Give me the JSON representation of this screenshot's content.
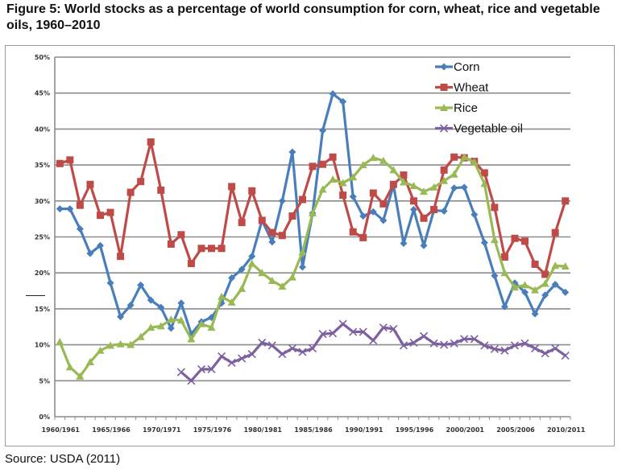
{
  "figure": {
    "title": "Figure 5: World stocks as a percentage of world consumption for corn, wheat, rice and vegetable oils, 1960–2010",
    "source": "Source: USDA (2011)"
  },
  "chart_data": {
    "type": "line",
    "title": "Figure 5: World stocks as a percentage of world consumption for corn, wheat, rice and vegetable oils, 1960–2010",
    "xlabel": "",
    "ylabel": "",
    "ylim": [
      0,
      50
    ],
    "y_ticks": [
      "0%",
      "5%",
      "10%",
      "15%",
      "20%",
      "25%",
      "30%",
      "35%",
      "40%",
      "45%",
      "50%"
    ],
    "x_ticks": [
      "1960/1961",
      "1965/1966",
      "1970/1971",
      "1975/1976",
      "1980/1981",
      "1985/1986",
      "1990/1991",
      "1995/1996",
      "2000/2001",
      "2005/2006",
      "2010/2011"
    ],
    "x_start_year": 1960,
    "x_end_year": 2010,
    "grid": true,
    "legend_position": "top-right",
    "series": [
      {
        "name": "Corn",
        "color": "#4a7ebb",
        "marker": "diamond",
        "start_year": 1960,
        "values": [
          28.9,
          28.9,
          26.1,
          22.7,
          23.8,
          18.6,
          13.9,
          15.5,
          18.3,
          16.2,
          15.2,
          12.3,
          15.8,
          11.5,
          13.2,
          13.8,
          15.8,
          19.3,
          20.5,
          22.3,
          27.3,
          24.3,
          30.0,
          36.8,
          20.8,
          28.3,
          39.8,
          44.9,
          43.8,
          30.6,
          27.9,
          28.5,
          27.3,
          32.2,
          24.1,
          28.8,
          23.8,
          28.7,
          28.6,
          31.8,
          31.9,
          28.1,
          24.2,
          19.6,
          15.3,
          18.6,
          17.3,
          14.3,
          16.9,
          18.4,
          17.3
        ]
      },
      {
        "name": "Wheat",
        "color": "#be4b48",
        "marker": "square",
        "start_year": 1960,
        "values": [
          35.2,
          35.7,
          29.4,
          32.3,
          28.0,
          28.4,
          22.3,
          31.2,
          32.7,
          38.2,
          31.5,
          24.0,
          25.3,
          21.3,
          23.4,
          23.4,
          23.4,
          32.0,
          27.0,
          31.4,
          27.3,
          25.6,
          25.2,
          27.9,
          30.2,
          34.8,
          35.1,
          36.1,
          30.8,
          25.7,
          24.9,
          31.1,
          29.6,
          32.3,
          33.6,
          30.0,
          27.6,
          28.8,
          34.3,
          36.1,
          36.0,
          35.5,
          33.9,
          29.1,
          22.2,
          24.8,
          24.4,
          21.2,
          19.8,
          25.6,
          30.0
        ]
      },
      {
        "name": "Rice",
        "color": "#98b954",
        "marker": "triangle",
        "start_year": 1960,
        "values": [
          10.4,
          6.9,
          5.6,
          7.6,
          9.2,
          9.9,
          10.1,
          10.0,
          11.1,
          12.4,
          12.6,
          13.5,
          13.4,
          10.8,
          12.9,
          12.4,
          16.7,
          15.9,
          17.8,
          21.3,
          20.0,
          18.9,
          18.1,
          19.4,
          22.9,
          28.3,
          31.6,
          33.0,
          32.5,
          33.3,
          35.0,
          36.0,
          35.6,
          34.3,
          32.6,
          32.1,
          31.3,
          31.9,
          32.8,
          33.7,
          36.1,
          35.4,
          32.4,
          24.6,
          20.0,
          18.0,
          18.3,
          17.6,
          18.5,
          21.0,
          20.9
        ]
      },
      {
        "name": "Vegetable oil",
        "color": "#7d60a0",
        "marker": "x",
        "start_year": 1972,
        "values": [
          6.2,
          5.0,
          6.6,
          6.6,
          8.4,
          7.5,
          8.1,
          8.7,
          10.3,
          9.9,
          8.7,
          9.5,
          9.0,
          9.5,
          11.5,
          11.6,
          12.9,
          11.8,
          11.8,
          10.6,
          12.4,
          12.2,
          9.9,
          10.3,
          11.2,
          10.2,
          10.0,
          10.2,
          10.8,
          10.8,
          9.9,
          9.4,
          9.2,
          9.9,
          10.2,
          9.5,
          8.8,
          9.5,
          8.5
        ]
      }
    ]
  }
}
